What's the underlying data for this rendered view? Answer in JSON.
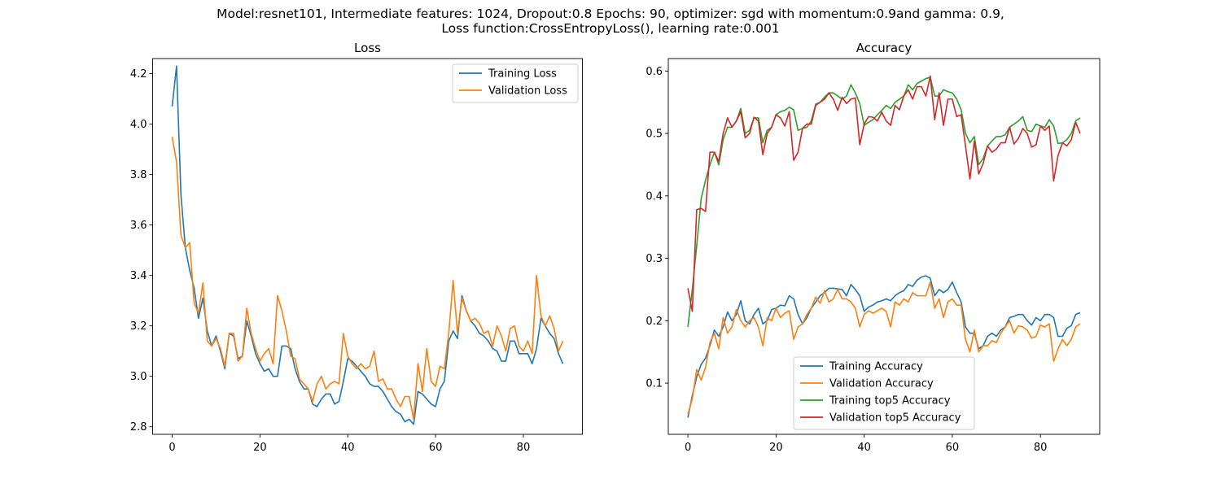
{
  "suptitle": {
    "line1": "Model:resnet101, Intermediate features: 1024, Dropout:0.8 Epochs: 90, optimizer: sgd with momentum:0.9and gamma: 0.9,",
    "line2": "Loss function:CrossEntropyLoss(), learning rate:0.001"
  },
  "colors": {
    "blue": "#1f77b4",
    "orange": "#ff7f0e",
    "green": "#2ca02c",
    "red": "#d62728"
  },
  "chart_data": [
    {
      "type": "line",
      "title": "Loss",
      "xlabel": "",
      "ylabel": "",
      "xlim": [
        -4.45,
        93.45
      ],
      "ylim": [
        2.77,
        4.26
      ],
      "xticks": [
        0,
        20,
        40,
        60,
        80
      ],
      "yticks": [
        2.8,
        3.0,
        3.2,
        3.4,
        3.6,
        3.8,
        4.0,
        4.2
      ],
      "ytick_labels": [
        "2.8",
        "3.0",
        "3.2",
        "3.4",
        "3.6",
        "3.8",
        "4.0",
        "4.2"
      ],
      "legend_position": "top-right",
      "series": [
        {
          "name": "Training Loss",
          "color": "#1f77b4",
          "values": [
            4.07,
            4.23,
            3.72,
            3.51,
            3.42,
            3.35,
            3.23,
            3.31,
            3.18,
            3.12,
            3.16,
            3.1,
            3.03,
            3.17,
            3.16,
            3.07,
            3.08,
            3.22,
            3.16,
            3.09,
            3.05,
            3.02,
            3.03,
            3.0,
            3.0,
            3.12,
            3.12,
            3.11,
            3.03,
            2.98,
            2.95,
            2.95,
            2.89,
            2.88,
            2.91,
            2.93,
            2.93,
            2.89,
            2.9,
            2.98,
            3.07,
            3.06,
            3.04,
            3.02,
            3.0,
            2.97,
            2.96,
            2.96,
            2.94,
            2.91,
            2.88,
            2.86,
            2.85,
            2.82,
            2.83,
            2.81,
            2.94,
            2.93,
            2.91,
            2.89,
            2.88,
            2.95,
            2.98,
            3.14,
            3.18,
            3.15,
            3.32,
            3.26,
            3.22,
            3.2,
            3.17,
            3.16,
            3.14,
            3.11,
            3.1,
            3.06,
            3.06,
            3.14,
            3.14,
            3.09,
            3.09,
            3.09,
            3.05,
            3.11,
            3.23,
            3.2,
            3.17,
            3.15,
            3.09,
            3.05
          ]
        },
        {
          "name": "Validation Loss",
          "color": "#ff7f0e",
          "values": [
            3.95,
            3.85,
            3.56,
            3.51,
            3.53,
            3.29,
            3.25,
            3.37,
            3.14,
            3.12,
            3.15,
            3.11,
            3.04,
            3.17,
            3.17,
            3.06,
            3.08,
            3.27,
            3.17,
            3.11,
            3.06,
            3.09,
            3.11,
            3.05,
            3.32,
            3.26,
            3.18,
            3.08,
            3.07,
            2.99,
            2.97,
            2.95,
            2.9,
            2.97,
            3.0,
            2.95,
            2.97,
            2.98,
            2.97,
            3.17,
            3.08,
            3.05,
            3.03,
            3.05,
            3.03,
            3.04,
            3.1,
            2.98,
            2.99,
            2.95,
            2.95,
            2.91,
            2.88,
            2.92,
            2.92,
            2.83,
            3.05,
            2.94,
            3.11,
            2.98,
            2.96,
            3.04,
            3.03,
            3.17,
            3.38,
            3.17,
            3.31,
            3.26,
            3.22,
            3.23,
            3.21,
            3.17,
            3.18,
            3.12,
            3.2,
            3.16,
            3.1,
            3.19,
            3.2,
            3.12,
            3.1,
            3.14,
            3.09,
            3.4,
            3.24,
            3.2,
            3.24,
            3.19,
            3.1,
            3.14
          ]
        }
      ]
    },
    {
      "type": "line",
      "title": "Accuracy",
      "xlabel": "",
      "ylabel": "",
      "xlim": [
        -4.45,
        93.45
      ],
      "ylim": [
        0.018,
        0.62
      ],
      "xticks": [
        0,
        20,
        40,
        60,
        80
      ],
      "yticks": [
        0.1,
        0.2,
        0.3,
        0.4,
        0.5,
        0.6
      ],
      "ytick_labels": [
        "0.1",
        "0.2",
        "0.3",
        "0.4",
        "0.5",
        "0.6"
      ],
      "legend_position": "lower center",
      "series": [
        {
          "name": "Training Accuracy",
          "color": "#1f77b4",
          "values": [
            0.045,
            0.08,
            0.11,
            0.13,
            0.14,
            0.16,
            0.185,
            0.175,
            0.19,
            0.214,
            0.2,
            0.21,
            0.232,
            0.2,
            0.195,
            0.21,
            0.22,
            0.195,
            0.2,
            0.218,
            0.22,
            0.225,
            0.224,
            0.24,
            0.235,
            0.21,
            0.195,
            0.205,
            0.22,
            0.23,
            0.24,
            0.245,
            0.252,
            0.252,
            0.251,
            0.25,
            0.24,
            0.258,
            0.25,
            0.24,
            0.215,
            0.222,
            0.225,
            0.23,
            0.232,
            0.235,
            0.232,
            0.24,
            0.245,
            0.248,
            0.258,
            0.255,
            0.265,
            0.27,
            0.272,
            0.268,
            0.24,
            0.25,
            0.245,
            0.25,
            0.262,
            0.245,
            0.23,
            0.19,
            0.18,
            0.18,
            0.155,
            0.16,
            0.175,
            0.18,
            0.175,
            0.185,
            0.19,
            0.205,
            0.207,
            0.21,
            0.21,
            0.2,
            0.193,
            0.205,
            0.2,
            0.21,
            0.21,
            0.205,
            0.175,
            0.175,
            0.188,
            0.192,
            0.21,
            0.213
          ]
        },
        {
          "name": "Validation Accuracy",
          "color": "#ff7f0e",
          "values": [
            0.05,
            0.075,
            0.122,
            0.105,
            0.125,
            0.165,
            0.18,
            0.155,
            0.205,
            0.18,
            0.19,
            0.218,
            0.2,
            0.19,
            0.2,
            0.205,
            0.19,
            0.16,
            0.205,
            0.2,
            0.22,
            0.205,
            0.212,
            0.216,
            0.17,
            0.19,
            0.195,
            0.21,
            0.22,
            0.238,
            0.228,
            0.248,
            0.23,
            0.235,
            0.25,
            0.235,
            0.235,
            0.23,
            0.22,
            0.19,
            0.21,
            0.216,
            0.212,
            0.216,
            0.22,
            0.215,
            0.19,
            0.23,
            0.225,
            0.235,
            0.23,
            0.245,
            0.24,
            0.24,
            0.24,
            0.262,
            0.22,
            0.235,
            0.205,
            0.23,
            0.235,
            0.225,
            0.225,
            0.17,
            0.15,
            0.185,
            0.15,
            0.16,
            0.16,
            0.168,
            0.165,
            0.18,
            0.19,
            0.2,
            0.18,
            0.192,
            0.19,
            0.185,
            0.172,
            0.175,
            0.193,
            0.19,
            0.195,
            0.135,
            0.155,
            0.17,
            0.16,
            0.17,
            0.19,
            0.195
          ]
        },
        {
          "name": "Training top5 Accuracy",
          "color": "#2ca02c",
          "values": [
            0.19,
            0.25,
            0.32,
            0.395,
            0.425,
            0.45,
            0.47,
            0.45,
            0.49,
            0.51,
            0.51,
            0.52,
            0.54,
            0.5,
            0.505,
            0.525,
            0.525,
            0.485,
            0.505,
            0.51,
            0.53,
            0.535,
            0.537,
            0.542,
            0.538,
            0.505,
            0.508,
            0.51,
            0.52,
            0.547,
            0.55,
            0.558,
            0.565,
            0.565,
            0.56,
            0.555,
            0.56,
            0.578,
            0.565,
            0.548,
            0.513,
            0.518,
            0.522,
            0.53,
            0.537,
            0.545,
            0.54,
            0.55,
            0.555,
            0.56,
            0.578,
            0.57,
            0.58,
            0.584,
            0.588,
            0.59,
            0.56,
            0.56,
            0.57,
            0.567,
            0.565,
            0.555,
            0.538,
            0.5,
            0.485,
            0.495,
            0.45,
            0.46,
            0.48,
            0.488,
            0.495,
            0.495,
            0.498,
            0.51,
            0.515,
            0.52,
            0.527,
            0.505,
            0.503,
            0.515,
            0.512,
            0.51,
            0.522,
            0.512,
            0.484,
            0.485,
            0.49,
            0.5,
            0.52,
            0.525
          ]
        },
        {
          "name": "Validation top5 Accuracy",
          "color": "#d62728",
          "values": [
            0.252,
            0.215,
            0.378,
            0.38,
            0.375,
            0.47,
            0.47,
            0.455,
            0.5,
            0.525,
            0.51,
            0.52,
            0.535,
            0.493,
            0.5,
            0.526,
            0.52,
            0.466,
            0.5,
            0.51,
            0.53,
            0.525,
            0.512,
            0.535,
            0.457,
            0.47,
            0.508,
            0.515,
            0.515,
            0.545,
            0.55,
            0.555,
            0.565,
            0.555,
            0.537,
            0.558,
            0.548,
            0.555,
            0.557,
            0.482,
            0.515,
            0.527,
            0.526,
            0.52,
            0.534,
            0.52,
            0.513,
            0.545,
            0.538,
            0.56,
            0.57,
            0.555,
            0.575,
            0.575,
            0.56,
            0.592,
            0.522,
            0.565,
            0.513,
            0.555,
            0.555,
            0.527,
            0.53,
            0.48,
            0.427,
            0.488,
            0.435,
            0.452,
            0.48,
            0.47,
            0.475,
            0.485,
            0.485,
            0.51,
            0.483,
            0.492,
            0.508,
            0.5,
            0.478,
            0.482,
            0.512,
            0.505,
            0.512,
            0.424,
            0.465,
            0.485,
            0.48,
            0.49,
            0.518,
            0.5
          ]
        }
      ]
    }
  ]
}
